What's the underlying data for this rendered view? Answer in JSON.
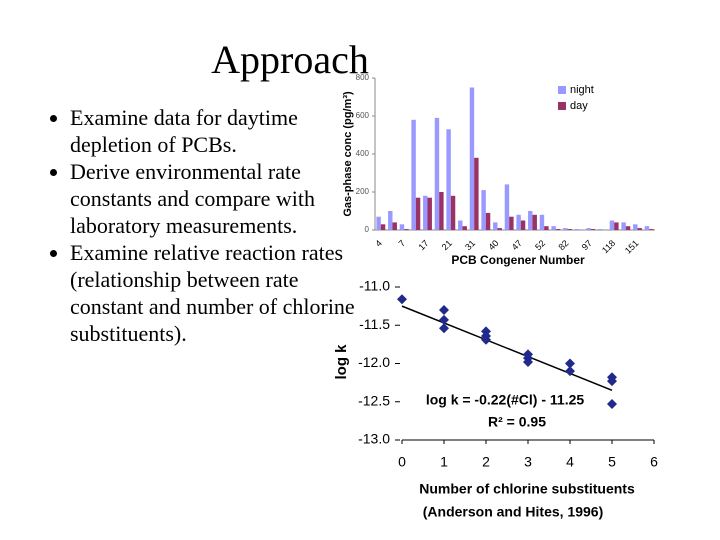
{
  "title": "Approach",
  "bullets": [
    "Examine data for daytime depletion of PCBs.",
    "Derive environmental rate constants and compare with laboratory measurements.",
    "Examine relative reaction rates (relationship between rate constant and number of chlorine substituents)."
  ],
  "chart_data": [
    {
      "type": "bar",
      "y_label": "Gas-phase conc (pg/m³)",
      "x_label": "PCB Congener Number",
      "categories": [
        "4",
        null,
        "7",
        null,
        "17",
        null,
        "21",
        null,
        "31",
        null,
        "40",
        null,
        "47",
        null,
        "52",
        null,
        "82",
        null,
        "97",
        null,
        "118",
        null,
        "151",
        null
      ],
      "series": [
        {
          "name": "night",
          "color": "#9999ff",
          "values": [
            70,
            100,
            30,
            580,
            180,
            590,
            530,
            50,
            750,
            210,
            40,
            240,
            80,
            100,
            80,
            20,
            10,
            5,
            10,
            5,
            50,
            40,
            30,
            20
          ]
        },
        {
          "name": "day",
          "color": "#993366",
          "values": [
            30,
            40,
            5,
            170,
            170,
            200,
            180,
            20,
            380,
            90,
            10,
            70,
            50,
            80,
            20,
            5,
            5,
            0,
            5,
            0,
            40,
            20,
            10,
            5
          ]
        }
      ],
      "ylim": [
        0,
        800
      ],
      "yticks": [
        0,
        200,
        400,
        600,
        800
      ],
      "legend": "upper right"
    },
    {
      "type": "scatter",
      "y_label": "log k",
      "x_label": "Number of chlorine substituents",
      "source": "(Anderson and Hites, 1996)",
      "x": [
        0,
        1,
        1,
        1,
        2,
        2,
        2,
        3,
        3,
        3,
        4,
        4,
        5,
        5,
        5
      ],
      "values": [
        -11.16,
        -11.3,
        -11.43,
        -11.54,
        -11.58,
        -11.64,
        -11.69,
        -11.88,
        -11.93,
        -11.98,
        -12.0,
        -12.1,
        -12.18,
        -12.23,
        -12.53
      ],
      "color": "#1f2a8a",
      "fit": {
        "slope": -0.22,
        "intercept": -11.25
      },
      "annotations": [
        "log k = -0.22(#Cl) - 11.25",
        "R² = 0.95"
      ],
      "xlim": [
        0,
        6
      ],
      "xticks": [
        0,
        1,
        2,
        3,
        4,
        5,
        6
      ],
      "ylim": [
        -13,
        -11
      ],
      "yticks": [
        {
          "value": -11,
          "label": "-11.0"
        },
        -11.5,
        {
          "value": -12,
          "label": "-12.0"
        },
        -12.5,
        {
          "value": -13,
          "label": "-13.0"
        }
      ]
    }
  ]
}
